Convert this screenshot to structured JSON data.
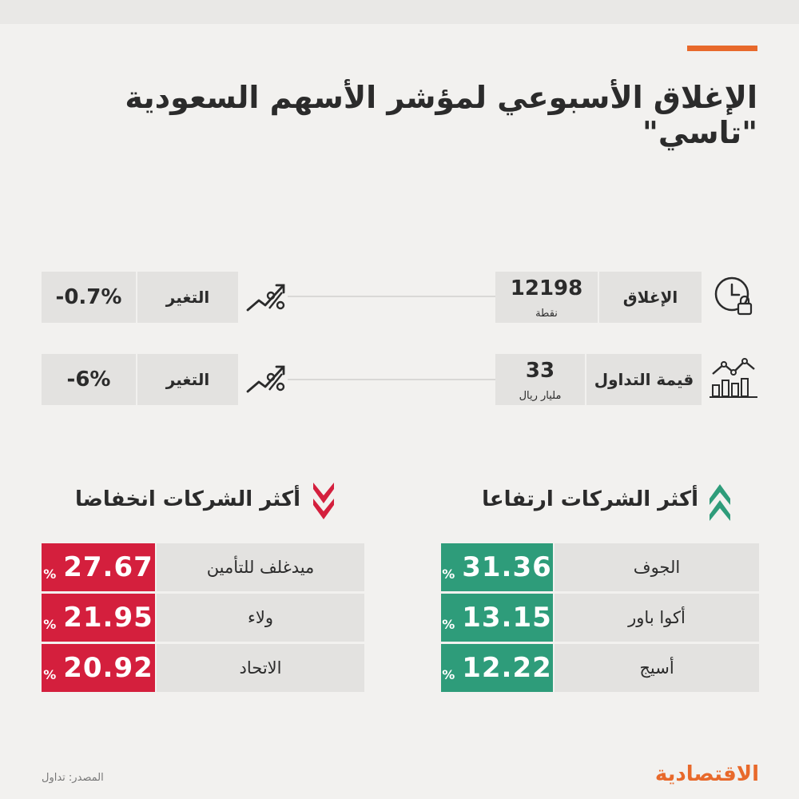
{
  "title": "الإغلاق الأسبوعي لمؤشر الأسهم السعودية \"تاسي\"",
  "stats": [
    {
      "label": "الإغلاق",
      "value": "12198",
      "unit": "نقطة",
      "change_label": "التغير",
      "change_value": "-0.7%",
      "icon": "clock-lock-icon"
    },
    {
      "label": "قيمة التداول",
      "value": "33",
      "unit": "مليار ريال",
      "change_label": "التغير",
      "change_value": "-6%",
      "icon": "bar-chart-trend-icon"
    }
  ],
  "gainers": {
    "title": "أكثر الشركات ارتفاعا",
    "rows": [
      {
        "name": "الجوف",
        "value": "31.36",
        "symbol": "%"
      },
      {
        "name": "أكوا باور",
        "value": "13.15",
        "symbol": "%"
      },
      {
        "name": "أسيج",
        "value": "12.22",
        "symbol": "%"
      }
    ]
  },
  "losers": {
    "title": "أكثر الشركات انخفاضا",
    "rows": [
      {
        "name": "ميدغلف للتأمين",
        "value": "27.67",
        "symbol": "%"
      },
      {
        "name": "ولاء",
        "value": "21.95",
        "symbol": "%"
      },
      {
        "name": "الاتحاد",
        "value": "20.92",
        "symbol": "%"
      }
    ]
  },
  "source": "المصدر: تداول",
  "logo": "الاقتصادية",
  "colors": {
    "accent": "#e8692b",
    "up": "#2e9c7a",
    "down": "#d41f3d",
    "box": "#e3e2e0"
  }
}
